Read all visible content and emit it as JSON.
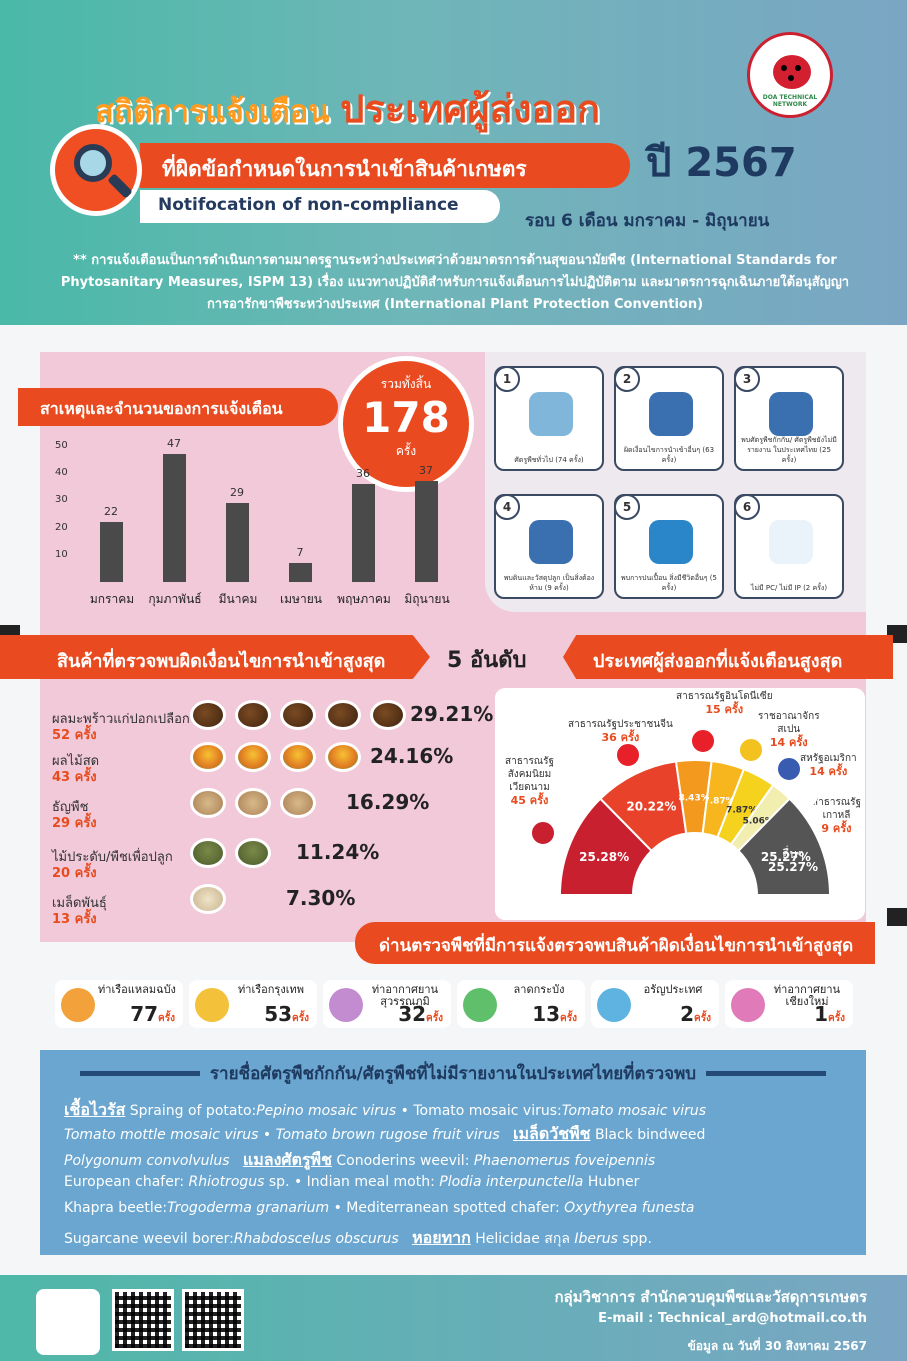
{
  "header": {
    "title_a": "สถิติการแจ้งเตือน",
    "title_b": "ประเทศผู้ส่งออก",
    "subtitle": "ที่ผิดข้อกำหนดในการนำเข้าสินค้าเกษตร",
    "notif": "Notifocation of non-compliance",
    "year": "ปี 2567",
    "range": "รอบ 6 เดือน  มกราคม - มิถุนายน",
    "logo_text": "DOA TECHNICAL NETWORK"
  },
  "description": "** การแจ้งเตือนเป็นการดำเนินการตามมาตรฐานระหว่างประเทศว่าด้วยมาตรการด้านสุขอนามัยพืช (International Standards for Phytosanitary Measures, ISPM 13) เรื่อง แนวทางปฏิบัติสำหรับการแจ้งเตือนการไม่ปฏิบัติตาม และมาตรการฉุกเฉินภายใต้อนุสัญญาการอารักขาพืชระหว่างประเทศ (International Plant Protection Convention)",
  "causes": {
    "banner": "สาเหตุและจำนวนของการแจ้งเตือน",
    "total_label": "รวมทั้งสิ้น",
    "total": "178",
    "total_unit": "ครั้ง"
  },
  "chart_data": {
    "type": "bar",
    "categories": [
      "มกราคม",
      "กุมภาพันธ์",
      "มีนาคม",
      "เมษายน",
      "พฤษภาคม",
      "มิถุนายน"
    ],
    "values": [
      22,
      47,
      29,
      7,
      36,
      37
    ],
    "yticks": [
      10,
      20,
      30,
      40,
      50
    ],
    "ylim": [
      0,
      50
    ]
  },
  "cards": [
    {
      "num": "1",
      "caption": "ศัตรูพืชทั่วไป (74 ครั้ง)",
      "color": "#7fb6d9"
    },
    {
      "num": "2",
      "caption": "ผิดเงื่อนไขการนำเข้าอื่นๆ (63 ครั้ง)",
      "color": "#3a6fb0"
    },
    {
      "num": "3",
      "caption": "พบศัตรูพืชกักกัน/ ศัตรูพืชยังไม่มีรายงาน ในประเทศไทย (25 ครั้ง)",
      "color": "#3a6fb0"
    },
    {
      "num": "4",
      "caption": "พบดินและวัสดุปลูก เป็นสิ่งต้องห้าม (9 ครั้ง)",
      "color": "#3a6fb0"
    },
    {
      "num": "5",
      "caption": "พบการปนเปื้อน สิ่งมีชีวิตอื่นๆ (5 ครั้ง)",
      "color": "#2a86c8"
    },
    {
      "num": "6",
      "caption": "ไม่มี PC/ ไม่มี IP (2 ครั้ง)",
      "color": "#eaf2fa"
    }
  ],
  "products": {
    "banner": "สินค้าที่ตรวจพบผิดเงื่อนไขการนำเข้าสูงสุด",
    "top": "5 อันดับ",
    "items": [
      {
        "name": "ผลมะพร้าวแก่ปอกเปลือก",
        "count": "52 ครั้ง",
        "pct": "29.21%"
      },
      {
        "name": "ผลไม้สด",
        "count": "43 ครั้ง",
        "pct": "24.16%"
      },
      {
        "name": "ธัญพืช",
        "count": "29 ครั้ง",
        "pct": "16.29%"
      },
      {
        "name": "ไม้ประดับ/พืชเพื่อปลูก",
        "count": "20 ครั้ง",
        "pct": "11.24%"
      },
      {
        "name": "เมล็ดพันธุ์",
        "count": "13 ครั้ง",
        "pct": "7.30%"
      }
    ]
  },
  "countries": {
    "banner": "ประเทศผู้ส่งออกที่แจ้งเตือนสูงสุด",
    "items": [
      {
        "name": "สาธารณรัฐสังคมนิยมเวียดนาม",
        "count": "45 ครั้ง",
        "pct": "25.28%",
        "color": "#c8202f"
      },
      {
        "name": "สาธารณรัฐประชาชนจีน",
        "count": "36 ครั้ง",
        "pct": "20.22%",
        "color": "#e8432a"
      },
      {
        "name": "สาธารณรัฐอินโดนีเซีย",
        "count": "15 ครั้ง",
        "pct": "8.43%",
        "color": "#f39a1e"
      },
      {
        "name": "ราชอาณาจักรสเปน",
        "count": "14 ครั้ง",
        "pct": "7.87%",
        "color": "#f7b51e"
      },
      {
        "name": "สหรัฐอเมริกา",
        "count": "14 ครั้ง",
        "pct": "7.87%",
        "color": "#f5d21e"
      },
      {
        "name": "สาธารณรัฐเกาหลี",
        "count": "9 ครั้ง",
        "pct": "5.06%",
        "color": "#f2eeb0"
      },
      {
        "name": "อื่นๆ",
        "count": "",
        "pct": "25.27%",
        "color": "#555555"
      }
    ]
  },
  "labels": {
    "vn1": "สาธารณรัฐ",
    "vn2": "สังคมนิยม",
    "vn3": "เวียดนาม",
    "cn": "สาธารณรัฐประชาชนจีน",
    "id": "สาธารณรัฐอินโดนีเซีย",
    "es1": "ราชอาณาจักร",
    "es2": "สเปน",
    "us": "สหรัฐอเมริกา",
    "kr1": "สาธารณรัฐ",
    "kr2": "เกาหลี",
    "other": "อื่นๆ"
  },
  "ports": {
    "banner": "ด่านตรวจพืชที่มีการแจ้งตรวจพบสินค้าผิดเงื่อนไขการนำเข้าสูงสุด",
    "items": [
      {
        "name": "ท่าเรือแหลมฉบัง",
        "count": "77",
        "unit": "ครั้ง",
        "color": "#f3a13a"
      },
      {
        "name": "ท่าเรือกรุงเทพ",
        "count": "53",
        "unit": "ครั้ง",
        "color": "#f3c23a"
      },
      {
        "name": "ท่าอากาศยาน สุวรรณภูมิ",
        "count": "32",
        "unit": "ครั้ง",
        "color": "#c38bd0"
      },
      {
        "name": "ลาดกระบัง",
        "count": "13",
        "unit": "ครั้ง",
        "color": "#5fbf6a"
      },
      {
        "name": "อรัญประเทศ",
        "count": "2",
        "unit": "ครั้ง",
        "color": "#5fb3e0"
      },
      {
        "name": "ท่าอากาศยาน เชียงใหม่",
        "count": "1",
        "unit": "ครั้ง",
        "color": "#e07ab8"
      }
    ]
  },
  "pests": {
    "title": "รายชื่อศัตรูพืชกักกัน/ศัตรูพืชที่ไม่มีรายงานในประเทศไทยที่ตรวจพบ",
    "virus": "เชื้อไวรัส",
    "l1a": "Spraing of potato:",
    "l1b": "Pepino mosaic virus",
    "l1c": "• Tomato mosaic virus:",
    "l1d": "Tomato mosaic virus",
    "l2a": "Tomato mottle mosaic virus",
    "l2b": "• Tomato brown rugose fruit virus",
    "weed": "เมล็ดวัชพืช",
    "l2c": "Black bindweed",
    "l3a": "Polygonum convolvulus",
    "insect": "แมลงศัตรูพืช",
    "l3b": "Conoderins weevil:",
    "l3c": "Phaenomerus foveipennis",
    "l4a": "European chafer:",
    "l4b": "Rhiotrogus",
    "l4c": "sp. • Indian meal moth:",
    "l4d": "Plodia interpunctella",
    "l4e": "Hubner",
    "l5a": "Khapra beetle:",
    "l5b": "Trogoderma granarium",
    "l5c": "• Mediterranean spotted chafer:",
    "l5d": "Oxythyrea funesta",
    "l6a": "Sugarcane weevil borer:",
    "l6b": "Rhabdoscelus obscurus",
    "snail": "หอยทาก",
    "l6c": "Helicidae  สกุล",
    "l6d": "Iberus",
    "l6e": "spp."
  },
  "footer": {
    "org": "กลุ่มวิชาการ สำนักควบคุมพืชและวัสดุการเกษตร",
    "email": "E-mail : Technical_ard@hotmail.co.th",
    "date": "ข้อมูล ณ วันที่ 30 สิงหาคม 2567"
  }
}
